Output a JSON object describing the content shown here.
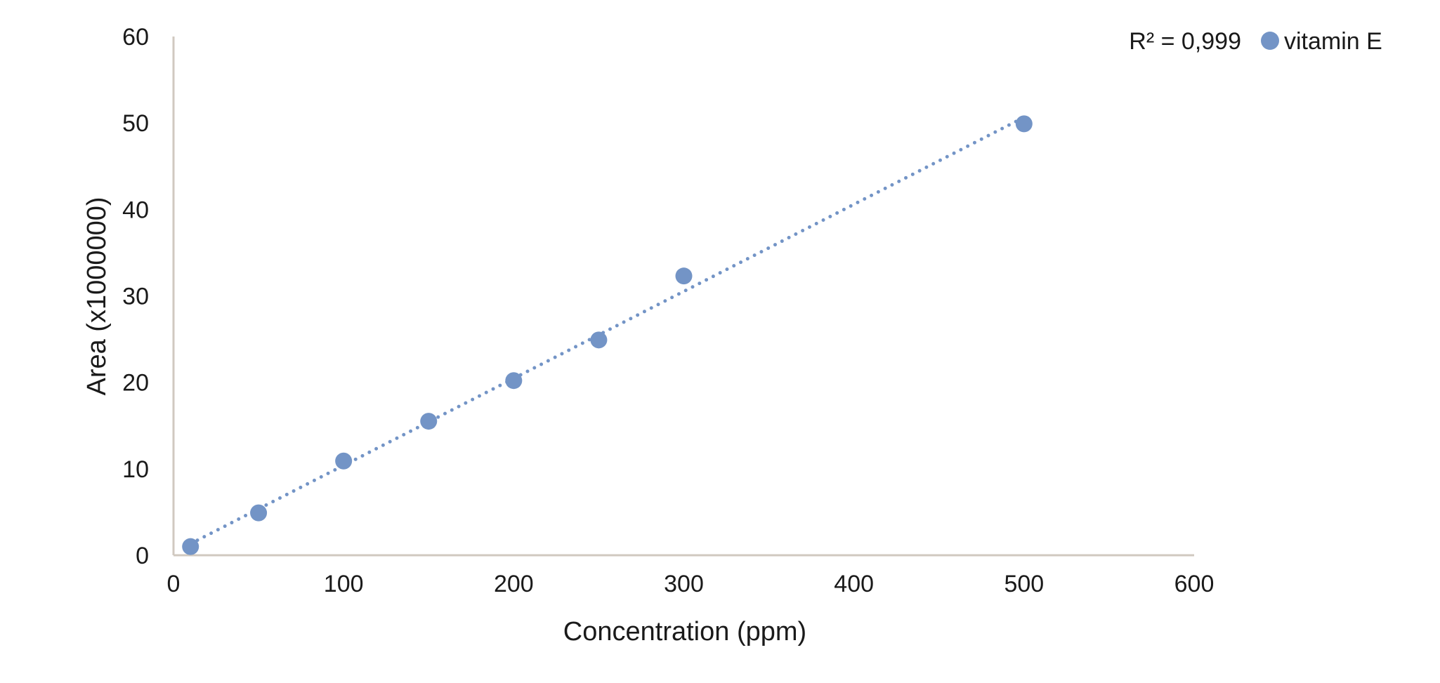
{
  "chart_data": {
    "type": "scatter",
    "title": "",
    "xlabel": "Concentration (ppm)",
    "ylabel": "Area (x1000000)",
    "xlim": [
      0,
      600
    ],
    "ylim": [
      0,
      60
    ],
    "x_ticks": [
      0,
      100,
      200,
      300,
      400,
      500,
      600
    ],
    "y_ticks": [
      0,
      10,
      20,
      30,
      40,
      50,
      60
    ],
    "grid": false,
    "legend_position": "top-right",
    "series": [
      {
        "name": "vitamin E",
        "color": "#7394c6",
        "x": [
          10,
          50,
          100,
          150,
          200,
          250,
          300,
          500
        ],
        "y": [
          1.0,
          4.9,
          10.9,
          15.5,
          20.2,
          24.9,
          32.3,
          49.9
        ]
      }
    ],
    "trendline": {
      "type": "linear",
      "style": "dotted",
      "color": "#7394c6",
      "x_range": [
        10,
        500
      ],
      "r2_label": "R² = 0,999"
    },
    "axis_color": "#d0c9c0"
  }
}
